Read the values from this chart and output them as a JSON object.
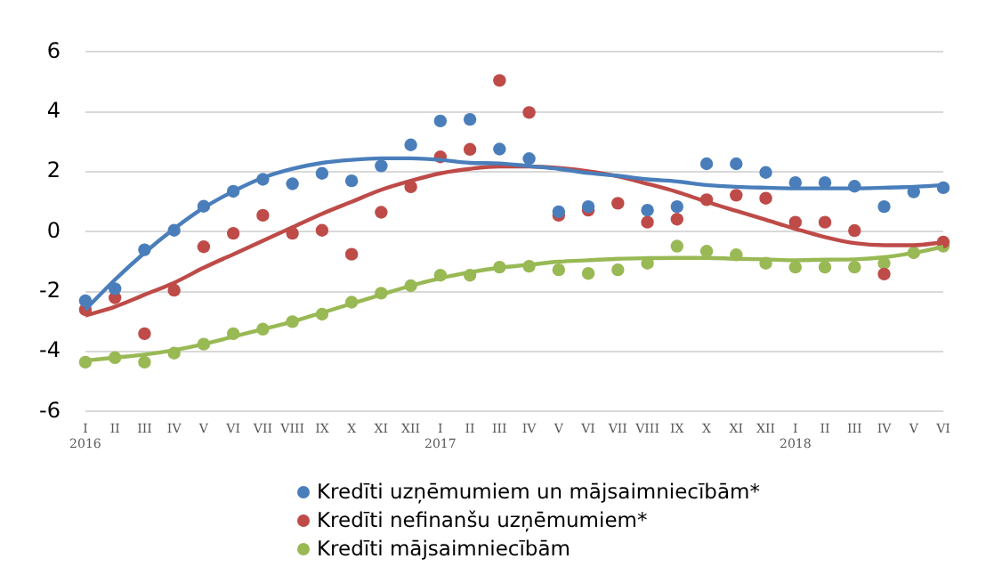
{
  "chart_data": {
    "type": "scatter",
    "categories": [
      "I\n2016",
      "II",
      "III",
      "IV",
      "V",
      "VI",
      "VII",
      "VIII",
      "IX",
      "X",
      "XI",
      "XII",
      "I\n2017",
      "II",
      "III",
      "IV",
      "V",
      "VI",
      "VII",
      "VIII",
      "IX",
      "X",
      "XI",
      "XII",
      "I\n2018",
      "II",
      "III",
      "IV",
      "V",
      "VI"
    ],
    "series": [
      {
        "type": "line",
        "marker": "none",
        "color": "#4a7ebb",
        "values": [
          -2.6,
          -1.6,
          -0.7,
          0.1,
          0.8,
          1.35,
          1.8,
          2.1,
          2.3,
          2.4,
          2.45,
          2.45,
          2.4,
          2.3,
          2.28,
          2.19,
          2.1,
          1.96,
          1.87,
          1.75,
          1.68,
          1.56,
          1.5,
          1.47,
          1.45,
          1.45,
          1.45,
          1.47,
          1.5,
          1.56
        ]
      },
      {
        "type": "line",
        "marker": "none",
        "color": "#be4b48",
        "values": [
          -2.8,
          -2.5,
          -2.1,
          -1.7,
          -1.2,
          -0.75,
          -0.3,
          0.15,
          0.6,
          1.0,
          1.4,
          1.7,
          1.95,
          2.1,
          2.18,
          2.18,
          2.13,
          2.02,
          1.85,
          1.6,
          1.33,
          1.0,
          0.7,
          0.4,
          0.1,
          -0.18,
          -0.38,
          -0.45,
          -0.45,
          -0.35
        ]
      },
      {
        "type": "line",
        "marker": "none",
        "color": "#98b954",
        "values": [
          -4.3,
          -4.2,
          -4.1,
          -3.95,
          -3.75,
          -3.5,
          -3.25,
          -3.0,
          -2.7,
          -2.4,
          -2.1,
          -1.8,
          -1.55,
          -1.35,
          -1.2,
          -1.1,
          -1.0,
          -0.95,
          -0.9,
          -0.88,
          -0.87,
          -0.87,
          -0.9,
          -0.92,
          -0.95,
          -0.93,
          -0.92,
          -0.85,
          -0.7,
          -0.5
        ]
      },
      {
        "name": "Kredīti uzņēmumiem un mājsaimniecībām*",
        "color": "#4a7ebb",
        "values": [
          -2.3,
          -1.9,
          -0.6,
          0.05,
          0.85,
          1.35,
          1.75,
          1.6,
          1.95,
          1.7,
          2.2,
          2.9,
          3.7,
          3.75,
          2.76,
          2.44,
          0.67,
          0.84,
          null,
          0.72,
          0.84,
          2.27,
          2.27,
          1.98,
          1.64,
          1.64,
          1.52,
          0.84,
          1.33,
          1.47
        ]
      },
      {
        "name": "Kredīti nefinanšu uzņēmumiem*",
        "color": "#be4b48",
        "values": [
          -2.6,
          -2.2,
          -3.4,
          -1.95,
          -0.5,
          -0.05,
          0.55,
          -0.05,
          0.05,
          -0.75,
          0.65,
          1.5,
          2.5,
          2.75,
          5.05,
          3.98,
          0.55,
          0.72,
          0.95,
          0.32,
          0.42,
          1.07,
          1.22,
          1.12,
          0.32,
          0.32,
          0.04,
          -1.41,
          null,
          -0.34
        ]
      },
      {
        "name": "Kredīti mājsaimniecībām",
        "color": "#98b954",
        "values": [
          -4.35,
          -4.2,
          -4.35,
          -4.05,
          -3.75,
          -3.4,
          -3.25,
          -3.0,
          -2.75,
          -2.35,
          -2.05,
          -1.8,
          -1.45,
          -1.45,
          -1.18,
          -1.15,
          -1.27,
          -1.39,
          -1.27,
          -1.05,
          -0.48,
          -0.65,
          -0.77,
          -1.05,
          -1.18,
          -1.18,
          -1.18,
          -1.05,
          -0.7,
          -0.48
        ]
      }
    ],
    "ylim": [
      -6,
      6
    ],
    "yticks": [
      -6,
      -4,
      -2,
      0,
      2,
      4,
      6
    ],
    "grid": "y",
    "legend": "bottom",
    "marker": "circle"
  }
}
